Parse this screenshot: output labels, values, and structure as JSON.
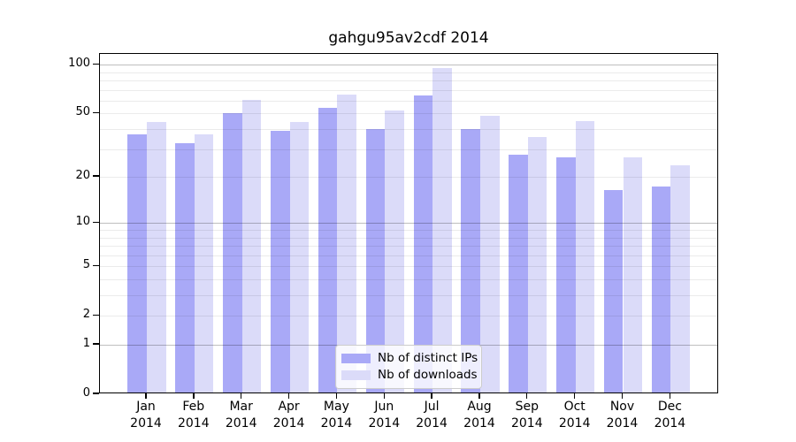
{
  "title": "gahgu95av2cdf 2014",
  "colors": {
    "ips": "#a9a9f7",
    "downloads": "#dbdbf9",
    "grid_minor": "rgba(0,0,0,0.08)",
    "grid_major": "rgba(0,0,0,0.25)",
    "axis": "#000000"
  },
  "legend": {
    "items": [
      {
        "key": "ips",
        "label": "Nb of distinct IPs"
      },
      {
        "key": "downloads",
        "label": "Nb of downloads"
      }
    ]
  },
  "y_axis": {
    "tick_labels": [
      "100",
      "50",
      "20",
      "10",
      "5",
      "2",
      "1",
      "0"
    ],
    "tick_values": [
      100,
      50,
      20,
      10,
      5,
      2,
      1,
      0
    ],
    "gridlines_minor": [
      2,
      3,
      4,
      5,
      6,
      7,
      8,
      9,
      20,
      30,
      40,
      50,
      60,
      70,
      80,
      90
    ],
    "gridlines_major": [
      1,
      10,
      100
    ]
  },
  "chart_data": {
    "type": "bar",
    "title": "gahgu95av2cdf 2014",
    "categories": [
      "Jan 2014",
      "Feb 2014",
      "Mar 2014",
      "Apr 2014",
      "May 2014",
      "Jun 2014",
      "Jul 2014",
      "Aug 2014",
      "Sep 2014",
      "Oct 2014",
      "Nov 2014",
      "Dec 2014"
    ],
    "series": [
      {
        "name": "Nb of distinct IPs",
        "values": [
          36,
          32,
          49,
          38,
          53,
          39,
          63,
          39,
          27,
          26,
          16,
          17
        ]
      },
      {
        "name": "Nb of downloads",
        "values": [
          43,
          36,
          59,
          43,
          64,
          51,
          93,
          47,
          35,
          44,
          26,
          23
        ]
      }
    ],
    "xlabel": "",
    "ylabel": "",
    "y_scale": "log10(1+x)",
    "y_ticks": [
      0,
      1,
      2,
      5,
      10,
      20,
      50,
      100
    ],
    "ylim": [
      0,
      116
    ],
    "grid": true,
    "legend_position": "lower-center"
  }
}
